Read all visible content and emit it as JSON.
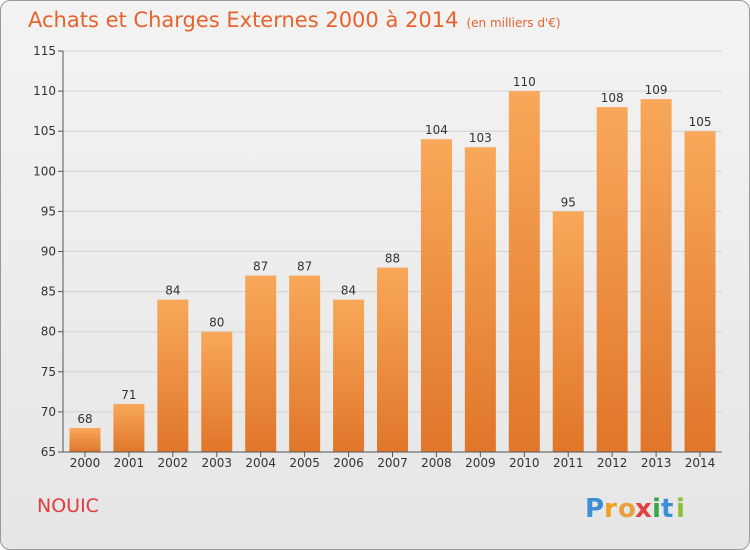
{
  "header": {
    "title": "Achats et Charges Externes 2000 à 2014",
    "subtitle": "(en milliers d'€)"
  },
  "footer": {
    "location": "NOUIC",
    "logo_text": "Proxiti"
  },
  "colors": {
    "bar_top": "#f8a85a",
    "bar_bottom": "#e0762a",
    "title": "#e8622d",
    "location": "#e23d3d",
    "grid": "#d2d2d2"
  },
  "chart_data": {
    "type": "bar",
    "title": "Achats et Charges Externes 2000 à 2014",
    "subtitle": "(en milliers d'€)",
    "xlabel": "",
    "ylabel": "",
    "categories": [
      "2000",
      "2001",
      "2002",
      "2003",
      "2004",
      "2005",
      "2006",
      "2007",
      "2008",
      "2009",
      "2010",
      "2011",
      "2012",
      "2013",
      "2014"
    ],
    "values": [
      68,
      71,
      84,
      80,
      87,
      87,
      84,
      88,
      104,
      103,
      110,
      95,
      108,
      109,
      105
    ],
    "ylim": [
      65,
      115
    ],
    "yticks": [
      65,
      70,
      75,
      80,
      85,
      90,
      95,
      100,
      105,
      110,
      115
    ],
    "grid": true,
    "legend": "none"
  }
}
